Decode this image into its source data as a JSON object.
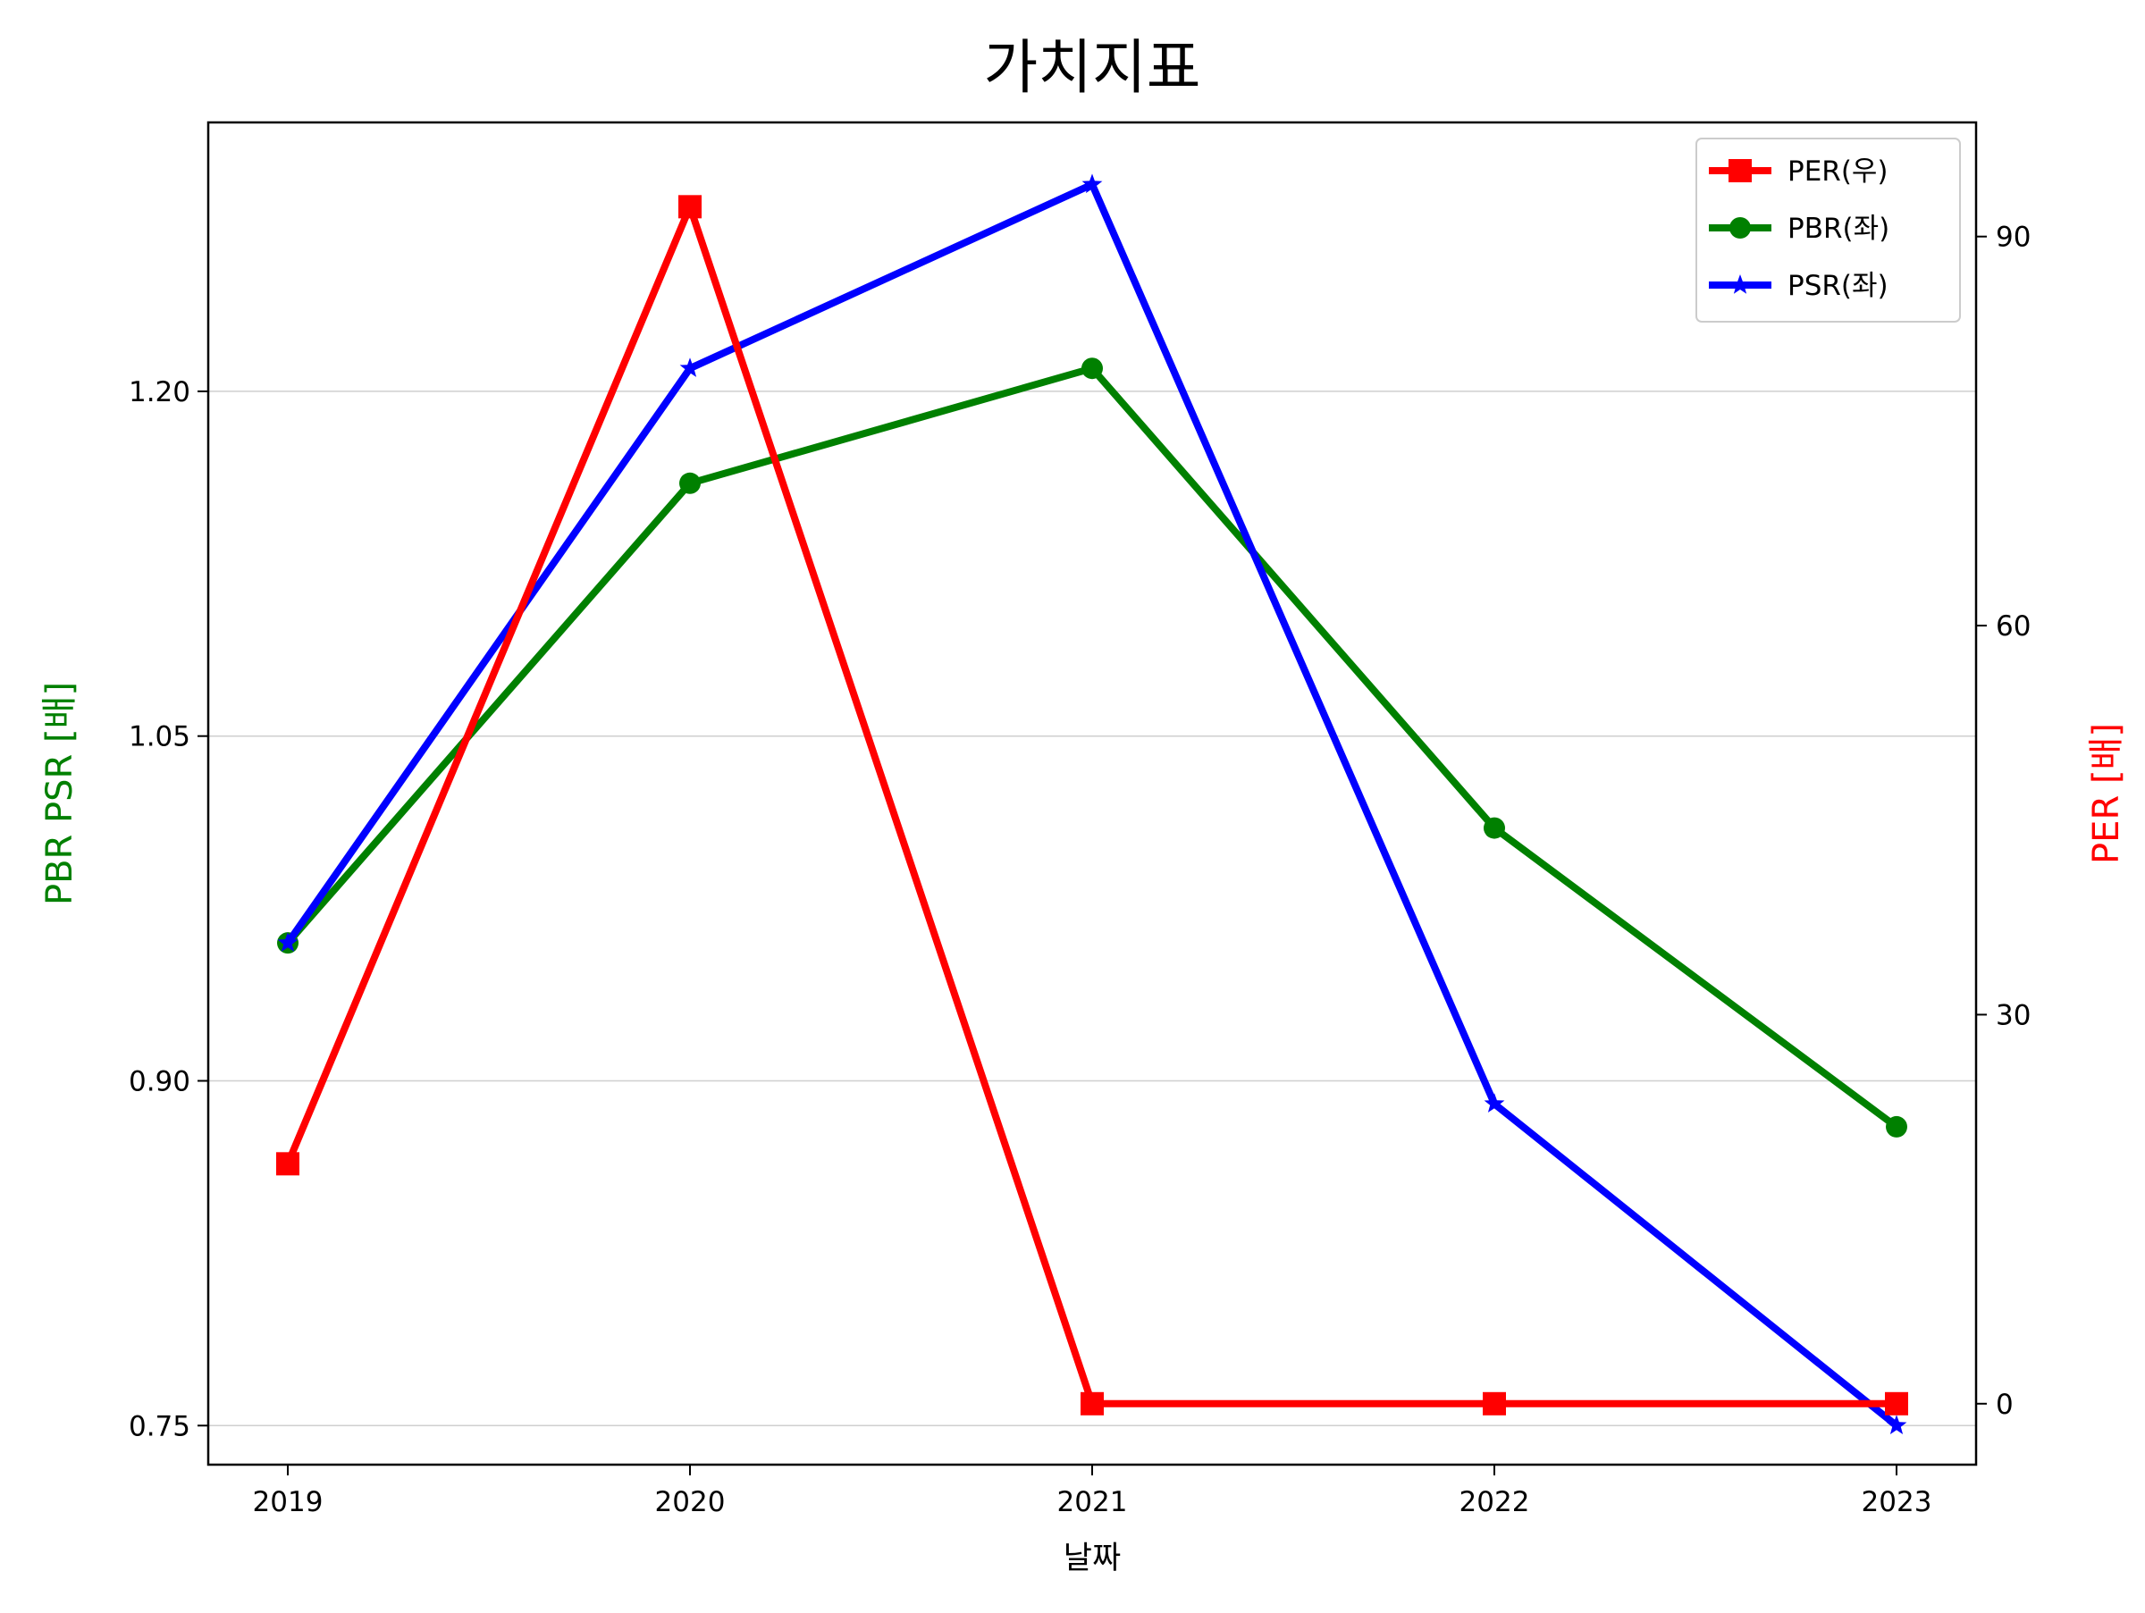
{
  "chart_data": {
    "type": "line",
    "title": "가치지표",
    "xlabel": "날짜",
    "ylabel_left": "PBR PSR [배]",
    "ylabel_right": "PER [배]",
    "categories": [
      "2019",
      "2020",
      "2021",
      "2022",
      "2023"
    ],
    "left_axis": {
      "ylim": [
        0.733,
        1.317
      ],
      "ticks": [
        0.75,
        0.9,
        1.05,
        1.2
      ],
      "tick_labels": [
        "0.75",
        "0.90",
        "1.05",
        "1.20"
      ],
      "grid": true
    },
    "right_axis": {
      "ylim": [
        -4.7,
        98.8
      ],
      "ticks": [
        0,
        30,
        60,
        90
      ],
      "tick_labels": [
        "0",
        "30",
        "60",
        "90"
      ]
    },
    "series": [
      {
        "name": "PER(우)",
        "axis": "right",
        "color": "#ff0000",
        "marker": "square",
        "values": [
          18.5,
          92.3,
          0.0,
          0.0,
          0.0
        ]
      },
      {
        "name": "PBR(좌)",
        "axis": "left",
        "color": "#008000",
        "marker": "circle",
        "values": [
          0.96,
          1.16,
          1.21,
          1.01,
          0.88
        ]
      },
      {
        "name": "PSR(좌)",
        "axis": "left",
        "color": "#0000ff",
        "marker": "star",
        "values": [
          0.96,
          1.21,
          1.29,
          0.89,
          0.75
        ]
      }
    ],
    "legend": {
      "position": "top-right",
      "entries": [
        "PER(우)",
        "PBR(좌)",
        "PSR(좌)"
      ]
    },
    "colors": {
      "left_label": "#008000",
      "right_label": "#ff0000"
    }
  }
}
